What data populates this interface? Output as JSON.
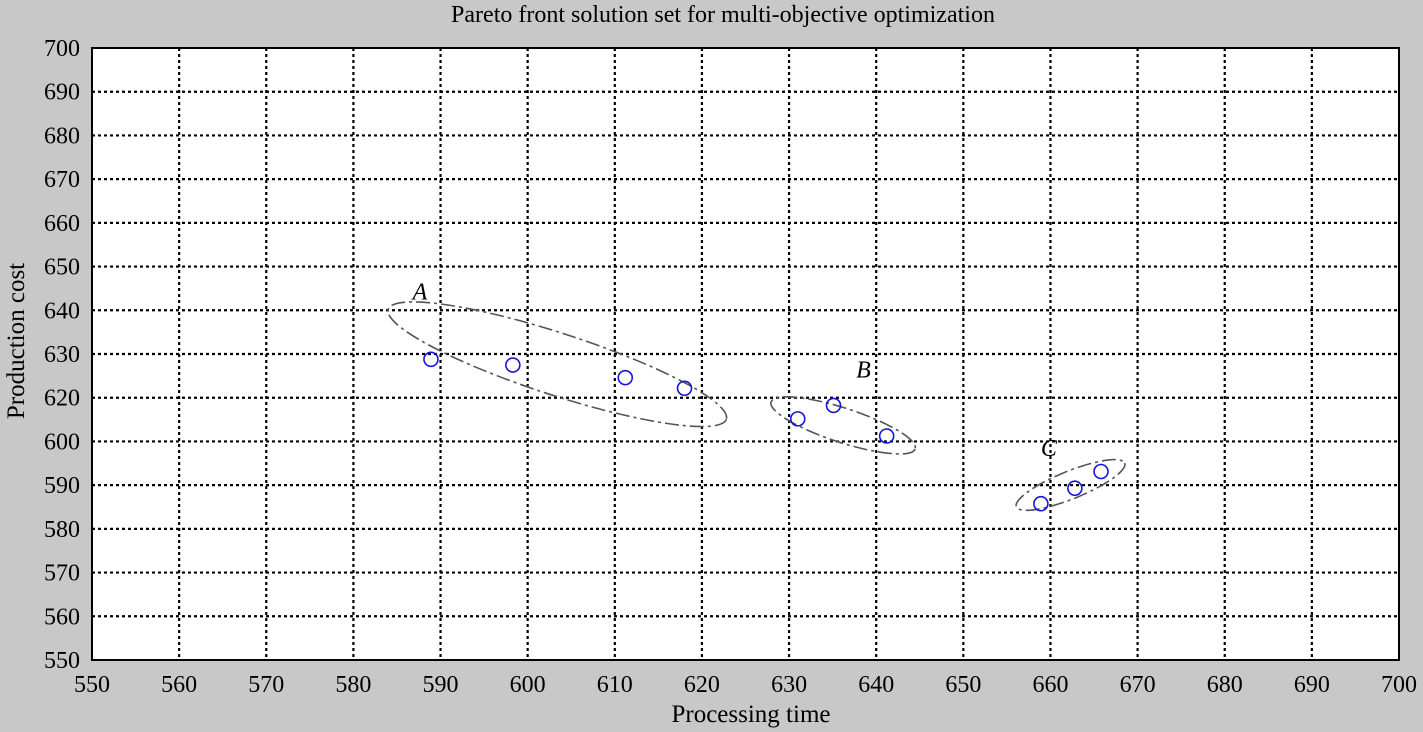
{
  "chart_data": {
    "type": "scatter",
    "title": "Pareto front solution set for multi-objective optimization",
    "xlabel": "Processing time",
    "ylabel": "Production cost",
    "xlim": [
      550,
      700
    ],
    "ylim": [
      550,
      700
    ],
    "x_ticks": [
      "550",
      "560",
      "570",
      "580",
      "590",
      "600",
      "610",
      "620",
      "630",
      "640",
      "650",
      "660",
      "670",
      "680",
      "690",
      "700"
    ],
    "y_ticks": [
      "550",
      "560",
      "570",
      "580",
      "590",
      "600",
      "620",
      "630",
      "640",
      "650",
      "660",
      "670",
      "680",
      "690",
      "700"
    ],
    "grid": true,
    "marker": "open-circle",
    "marker_color": "#1515d8",
    "background": "#c8c8c8",
    "plot_background": "#ffffff",
    "points": [
      {
        "x": 588.9,
        "y": 623.7
      },
      {
        "x": 598.3,
        "y": 622.3
      },
      {
        "x": 611.2,
        "y": 619.2
      },
      {
        "x": 618.0,
        "y": 616.6
      },
      {
        "x": 631.0,
        "y": 609.1
      },
      {
        "x": 635.1,
        "y": 612.4
      },
      {
        "x": 641.2,
        "y": 604.9
      },
      {
        "x": 658.9,
        "y": 588.3
      },
      {
        "x": 662.8,
        "y": 592.1
      },
      {
        "x": 665.8,
        "y": 596.2
      }
    ],
    "annotations": [
      {
        "label": "A",
        "cx": 603.4,
        "cy": 622.5,
        "rx_data": 20.4,
        "ry_data": 7.6,
        "rotate_deg": 18.0,
        "label_x": 586.8,
        "label_y": 638.3
      },
      {
        "label": "B",
        "cx": 636.2,
        "cy": 607.5,
        "rx_data": 8.7,
        "ry_data": 4.2,
        "rotate_deg": 18.0,
        "label_x": 637.7,
        "label_y": 619.2
      },
      {
        "label": "C",
        "cx": 662.3,
        "cy": 592.9,
        "rx_data": 6.7,
        "ry_data": 3.4,
        "rotate_deg": -22.0,
        "label_x": 658.9,
        "label_y": 600.0
      }
    ]
  }
}
